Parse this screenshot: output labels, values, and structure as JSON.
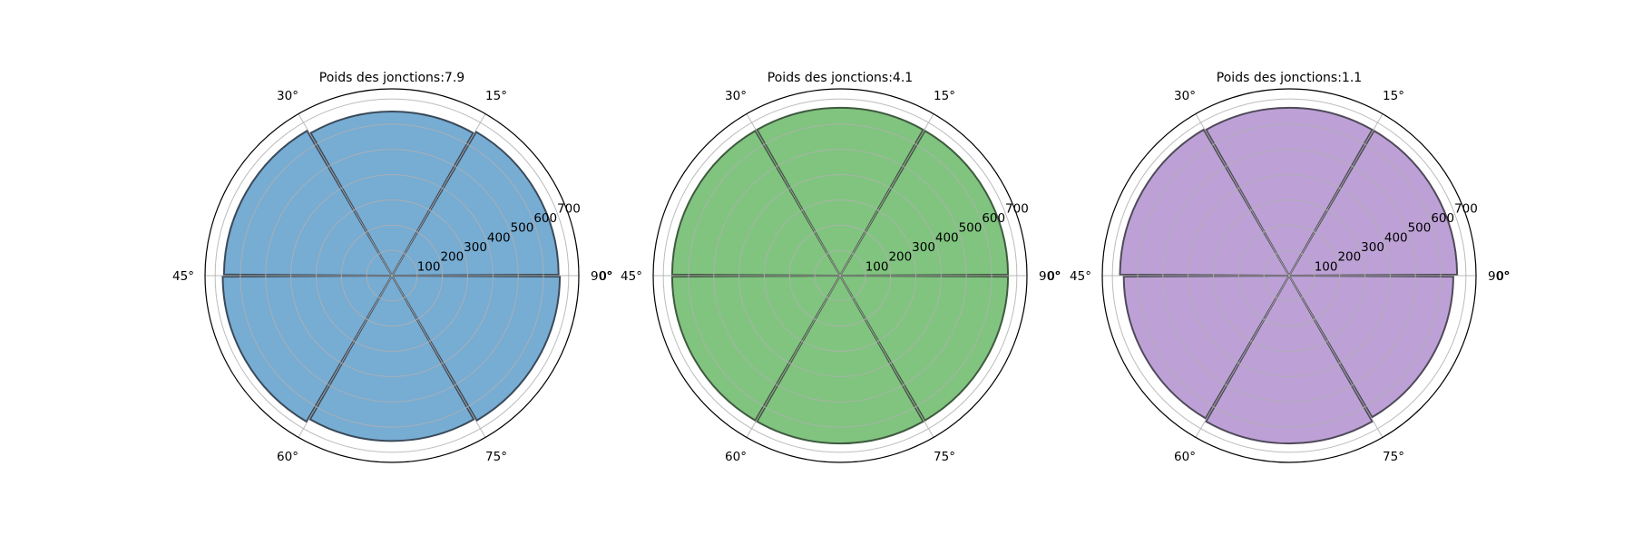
{
  "chart_data": [
    {
      "type": "polar-bar",
      "title": "Poids des jonctions:7.9",
      "color": "#77acd3",
      "edge_color": "#3a4a5a",
      "angle_labels": [
        "0°",
        "15°",
        "30°",
        "45°",
        "60°",
        "75°",
        "90°"
      ],
      "r_ticks": [
        100,
        200,
        300,
        400,
        500,
        600,
        700
      ],
      "r_max": 740,
      "bars": [
        {
          "start_deg": 0,
          "end_deg": 60,
          "value": 660
        },
        {
          "start_deg": 60,
          "end_deg": 120,
          "value": 650
        },
        {
          "start_deg": 120,
          "end_deg": 180,
          "value": 665
        },
        {
          "start_deg": 180,
          "end_deg": 240,
          "value": 670
        },
        {
          "start_deg": 240,
          "end_deg": 300,
          "value": 655
        },
        {
          "start_deg": 300,
          "end_deg": 360,
          "value": 665
        }
      ]
    },
    {
      "type": "polar-bar",
      "title": "Poids des jonctions:4.1",
      "color": "#80c47f",
      "edge_color": "#3f5a3f",
      "angle_labels": [
        "0°",
        "15°",
        "30°",
        "45°",
        "60°",
        "75°",
        "90°"
      ],
      "r_ticks": [
        100,
        200,
        300,
        400,
        500,
        600,
        700
      ],
      "r_max": 740,
      "bars": [
        {
          "start_deg": 0,
          "end_deg": 60,
          "value": 665
        },
        {
          "start_deg": 60,
          "end_deg": 120,
          "value": 665
        },
        {
          "start_deg": 120,
          "end_deg": 180,
          "value": 665
        },
        {
          "start_deg": 180,
          "end_deg": 240,
          "value": 665
        },
        {
          "start_deg": 240,
          "end_deg": 300,
          "value": 665
        },
        {
          "start_deg": 300,
          "end_deg": 360,
          "value": 665
        }
      ]
    },
    {
      "type": "polar-bar",
      "title": "Poids des jonctions:1.1",
      "color": "#bda1d6",
      "edge_color": "#4f4a5a",
      "angle_labels": [
        "0°",
        "15°",
        "30°",
        "45°",
        "60°",
        "75°",
        "90°"
      ],
      "r_ticks": [
        100,
        200,
        300,
        400,
        500,
        600,
        700
      ],
      "r_max": 740,
      "bars": [
        {
          "start_deg": 0,
          "end_deg": 60,
          "value": 665
        },
        {
          "start_deg": 60,
          "end_deg": 120,
          "value": 665
        },
        {
          "start_deg": 120,
          "end_deg": 180,
          "value": 670
        },
        {
          "start_deg": 180,
          "end_deg": 240,
          "value": 655
        },
        {
          "start_deg": 240,
          "end_deg": 300,
          "value": 665
        },
        {
          "start_deg": 300,
          "end_deg": 360,
          "value": 650
        }
      ]
    }
  ]
}
